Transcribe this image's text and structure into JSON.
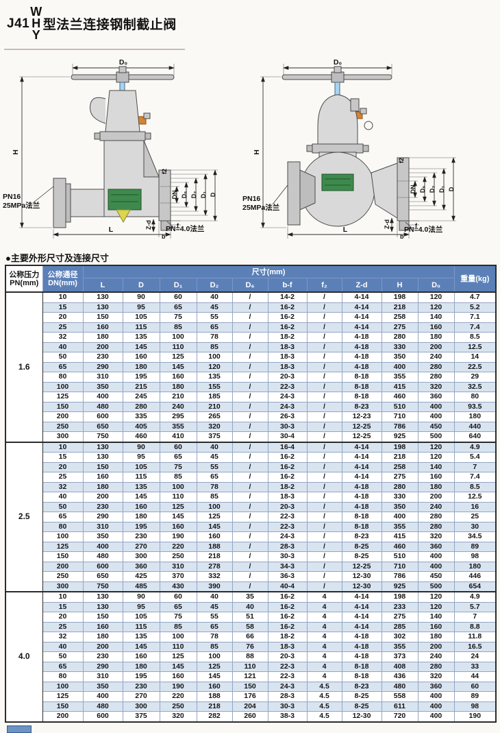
{
  "page": {
    "title_prefix": "J41",
    "title_stack_w": "W",
    "title_stack_h": "H",
    "title_stack_y": "Y",
    "title_suffix": "型法兰连接钢制截止阀",
    "section_heading": "●主要外形尺寸及连接尺寸"
  },
  "colors": {
    "header_blue": "#5b80b8",
    "row_alt_blue": "#d9e4f1",
    "stem_blue": "#a9d3ef",
    "seat_green": "#3e8a4d",
    "gland_orange": "#d8832e",
    "packing_yellow": "#ddd64d"
  },
  "diagram_labels": {
    "d0": "D₀",
    "h": "H",
    "dn": "DN",
    "d6": "D₆",
    "d2": "D₂",
    "d1": "D₁",
    "d": "D",
    "f2": "f2",
    "zd": "Z-d",
    "f": "f",
    "b": "b",
    "l": "L",
    "flange_left_1": "PN16",
    "flange_left_2": "25MPa法兰",
    "flange_right": "PN=4.0法兰"
  },
  "table": {
    "header": {
      "pressure_l1": "公称压力",
      "pressure_l2": "PN(mm)",
      "bore_l1": "公称通径",
      "bore_l2": "DN(mm)",
      "size_group_label": "尺寸(mm)",
      "size_columns": [
        "L",
        "D",
        "D₁",
        "D₂",
        "D₆",
        "b-f",
        "f₂",
        "Z-d",
        "H",
        "D₀"
      ],
      "weight_label": "重量(kg)"
    },
    "groups": [
      {
        "pn": "1.6",
        "rows": [
          [
            "10",
            "130",
            "90",
            "60",
            "40",
            "/",
            "14-2",
            "/",
            "4-14",
            "198",
            "120",
            "4.7"
          ],
          [
            "15",
            "130",
            "95",
            "65",
            "45",
            "/",
            "16-2",
            "/",
            "4-14",
            "218",
            "120",
            "5.2"
          ],
          [
            "20",
            "150",
            "105",
            "75",
            "55",
            "/",
            "16-2",
            "/",
            "4-14",
            "258",
            "140",
            "7.1"
          ],
          [
            "25",
            "160",
            "115",
            "85",
            "65",
            "/",
            "16-2",
            "/",
            "4-14",
            "275",
            "160",
            "7.4"
          ],
          [
            "32",
            "180",
            "135",
            "100",
            "78",
            "/",
            "18-2",
            "/",
            "4-18",
            "280",
            "180",
            "8.5"
          ],
          [
            "40",
            "200",
            "145",
            "110",
            "85",
            "/",
            "18-3",
            "/",
            "4-18",
            "330",
            "200",
            "12.5"
          ],
          [
            "50",
            "230",
            "160",
            "125",
            "100",
            "/",
            "18-3",
            "/",
            "4-18",
            "350",
            "240",
            "14"
          ],
          [
            "65",
            "290",
            "180",
            "145",
            "120",
            "/",
            "18-3",
            "/",
            "4-18",
            "400",
            "280",
            "22.5"
          ],
          [
            "80",
            "310",
            "195",
            "160",
            "135",
            "/",
            "20-3",
            "/",
            "8-18",
            "355",
            "280",
            "29"
          ],
          [
            "100",
            "350",
            "215",
            "180",
            "155",
            "/",
            "22-3",
            "/",
            "8-18",
            "415",
            "320",
            "32.5"
          ],
          [
            "125",
            "400",
            "245",
            "210",
            "185",
            "/",
            "24-3",
            "/",
            "8-18",
            "460",
            "360",
            "80"
          ],
          [
            "150",
            "480",
            "280",
            "240",
            "210",
            "/",
            "24-3",
            "/",
            "8-23",
            "510",
            "400",
            "93.5"
          ],
          [
            "200",
            "600",
            "335",
            "295",
            "265",
            "/",
            "26-3",
            "/",
            "12-23",
            "710",
            "400",
            "180"
          ],
          [
            "250",
            "650",
            "405",
            "355",
            "320",
            "/",
            "30-3",
            "/",
            "12-25",
            "786",
            "450",
            "440"
          ],
          [
            "300",
            "750",
            "460",
            "410",
            "375",
            "/",
            "30-4",
            "/",
            "12-25",
            "925",
            "500",
            "640"
          ]
        ]
      },
      {
        "pn": "2.5",
        "rows": [
          [
            "10",
            "130",
            "90",
            "60",
            "40",
            "/",
            "16-4",
            "/",
            "4-14",
            "198",
            "120",
            "4.9"
          ],
          [
            "15",
            "130",
            "95",
            "65",
            "45",
            "/",
            "16-2",
            "/",
            "4-14",
            "218",
            "120",
            "5.4"
          ],
          [
            "20",
            "150",
            "105",
            "75",
            "55",
            "/",
            "16-2",
            "/",
            "4-14",
            "258",
            "140",
            "7"
          ],
          [
            "25",
            "160",
            "115",
            "85",
            "65",
            "/",
            "16-2",
            "/",
            "4-14",
            "275",
            "160",
            "7.4"
          ],
          [
            "32",
            "180",
            "135",
            "100",
            "78",
            "/",
            "18-2",
            "/",
            "4-18",
            "280",
            "180",
            "8.5"
          ],
          [
            "40",
            "200",
            "145",
            "110",
            "85",
            "/",
            "18-3",
            "/",
            "4-18",
            "330",
            "200",
            "12.5"
          ],
          [
            "50",
            "230",
            "160",
            "125",
            "100",
            "/",
            "20-3",
            "/",
            "4-18",
            "350",
            "240",
            "16"
          ],
          [
            "65",
            "290",
            "180",
            "145",
            "125",
            "/",
            "22-3",
            "/",
            "8-18",
            "400",
            "280",
            "25"
          ],
          [
            "80",
            "310",
            "195",
            "160",
            "145",
            "/",
            "22-3",
            "/",
            "8-18",
            "355",
            "280",
            "30"
          ],
          [
            "100",
            "350",
            "230",
            "190",
            "160",
            "/",
            "24-3",
            "/",
            "8-23",
            "415",
            "320",
            "34.5"
          ],
          [
            "125",
            "400",
            "270",
            "220",
            "188",
            "/",
            "28-3",
            "/",
            "8-25",
            "460",
            "360",
            "89"
          ],
          [
            "150",
            "480",
            "300",
            "250",
            "218",
            "/",
            "30-3",
            "/",
            "8-25",
            "510",
            "400",
            "98"
          ],
          [
            "200",
            "600",
            "360",
            "310",
            "278",
            "/",
            "34-3",
            "/",
            "12-25",
            "710",
            "400",
            "180"
          ],
          [
            "250",
            "650",
            "425",
            "370",
            "332",
            "/",
            "36-3",
            "/",
            "12-30",
            "786",
            "450",
            "446"
          ],
          [
            "300",
            "750",
            "485",
            "430",
            "390",
            "/",
            "40-4",
            "/",
            "12-30",
            "925",
            "500",
            "654"
          ]
        ]
      },
      {
        "pn": "4.0",
        "rows": [
          [
            "10",
            "130",
            "90",
            "60",
            "40",
            "35",
            "16-2",
            "4",
            "4-14",
            "198",
            "120",
            "4.9"
          ],
          [
            "15",
            "130",
            "95",
            "65",
            "45",
            "40",
            "16-2",
            "4",
            "4-14",
            "233",
            "120",
            "5.7"
          ],
          [
            "20",
            "150",
            "105",
            "75",
            "55",
            "51",
            "16-2",
            "4",
            "4-14",
            "275",
            "140",
            "7"
          ],
          [
            "25",
            "160",
            "115",
            "85",
            "65",
            "58",
            "16-2",
            "4",
            "4-14",
            "285",
            "160",
            "8.8"
          ],
          [
            "32",
            "180",
            "135",
            "100",
            "78",
            "66",
            "18-2",
            "4",
            "4-18",
            "302",
            "180",
            "11.8"
          ],
          [
            "40",
            "200",
            "145",
            "110",
            "85",
            "76",
            "18-3",
            "4",
            "4-18",
            "355",
            "200",
            "16.5"
          ],
          [
            "50",
            "230",
            "160",
            "125",
            "100",
            "88",
            "20-3",
            "4",
            "4-18",
            "373",
            "240",
            "24"
          ],
          [
            "65",
            "290",
            "180",
            "145",
            "125",
            "110",
            "22-3",
            "4",
            "8-18",
            "408",
            "280",
            "33"
          ],
          [
            "80",
            "310",
            "195",
            "160",
            "145",
            "121",
            "22-3",
            "4",
            "8-18",
            "436",
            "320",
            "44"
          ],
          [
            "100",
            "350",
            "230",
            "190",
            "160",
            "150",
            "24-3",
            "4.5",
            "8-23",
            "480",
            "360",
            "60"
          ],
          [
            "125",
            "400",
            "270",
            "220",
            "188",
            "176",
            "28-3",
            "4.5",
            "8-25",
            "558",
            "400",
            "89"
          ],
          [
            "150",
            "480",
            "300",
            "250",
            "218",
            "204",
            "30-3",
            "4.5",
            "8-25",
            "611",
            "400",
            "98"
          ],
          [
            "200",
            "600",
            "375",
            "320",
            "282",
            "260",
            "38-3",
            "4.5",
            "12-30",
            "720",
            "400",
            "190"
          ]
        ]
      }
    ]
  }
}
